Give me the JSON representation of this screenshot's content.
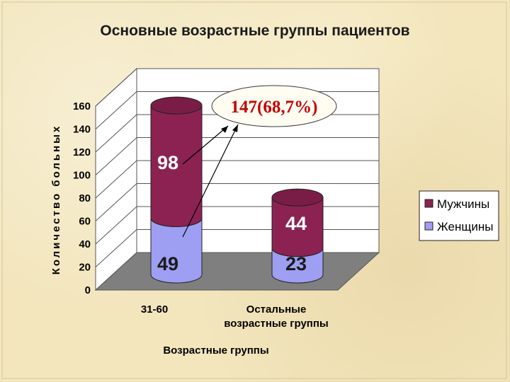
{
  "colors": {
    "men": "#8b2252",
    "men_top": "#7a1d46",
    "women": "#9e9ef2",
    "women_top": "#c5c5fb",
    "floor": "#7f7f7f",
    "wall": "#ffffff",
    "callout_text": "#c40000"
  },
  "chart_data": {
    "type": "bar",
    "stacked": true,
    "three_d": true,
    "title": "Основные возрастные группы пациентов",
    "xlabel": "Возрастные группы",
    "ylabel": "Количество больных",
    "ylim": [
      0,
      160
    ],
    "yticks": [
      "0",
      "20",
      "40",
      "60",
      "80",
      "100",
      "120",
      "140",
      "160"
    ],
    "categories": [
      "31-60",
      "Остальные возрастные группы"
    ],
    "category_lines": [
      [
        "31-60"
      ],
      [
        "Остальные",
        "возрастные группы"
      ]
    ],
    "series": [
      {
        "name": "Женщины",
        "values": [
          49,
          23
        ]
      },
      {
        "name": "Мужчины",
        "values": [
          98,
          44
        ]
      }
    ],
    "legend": {
      "position": "right",
      "items": [
        "Мужчины",
        "Женщины"
      ]
    },
    "annotation": {
      "text": "147(68,7%)",
      "points_to": "31-60"
    },
    "grid": true
  }
}
